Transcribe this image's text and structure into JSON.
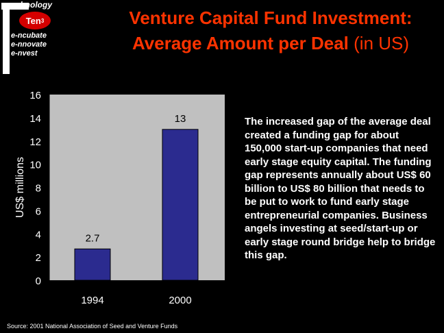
{
  "logo": {
    "text_top": "echnology",
    "badge": "Ten",
    "badge_sup": "3",
    "lines": [
      "e-ncubate",
      "e-nnovate",
      "e-nvest"
    ]
  },
  "title": {
    "line1": "Venture Capital Fund Investment:",
    "line2_bold": "Average Amount per Deal",
    "line2_light": " (in US)"
  },
  "chart_data": {
    "type": "bar",
    "categories": [
      "1994",
      "2000"
    ],
    "values": [
      2.7,
      13
    ],
    "data_labels": [
      "2.7",
      "13"
    ],
    "ylabel": "US$ millions",
    "ylim": [
      0,
      16
    ],
    "yticks": [
      0,
      2,
      4,
      6,
      8,
      10,
      12,
      14,
      16
    ],
    "grid": false,
    "colors": {
      "bar": "#2b2b8f",
      "plot_bg": "#c0c0c0",
      "text": "#ffffff"
    }
  },
  "description": "The increased gap of the average deal created a funding gap for about 150,000 start-up companies that need early stage equity capital. The funding gap represents annually about US$ 60 billion to US$ 80 billion that needs to be put to work to fund early stage entrepreneurial companies. Business angels investing at seed/start-up or early stage round bridge help to bridge this gap.",
  "source": "Source: 2001 National Association of Seed and Venture Funds",
  "colors": {
    "title": "#ff3300",
    "background": "#000000"
  }
}
